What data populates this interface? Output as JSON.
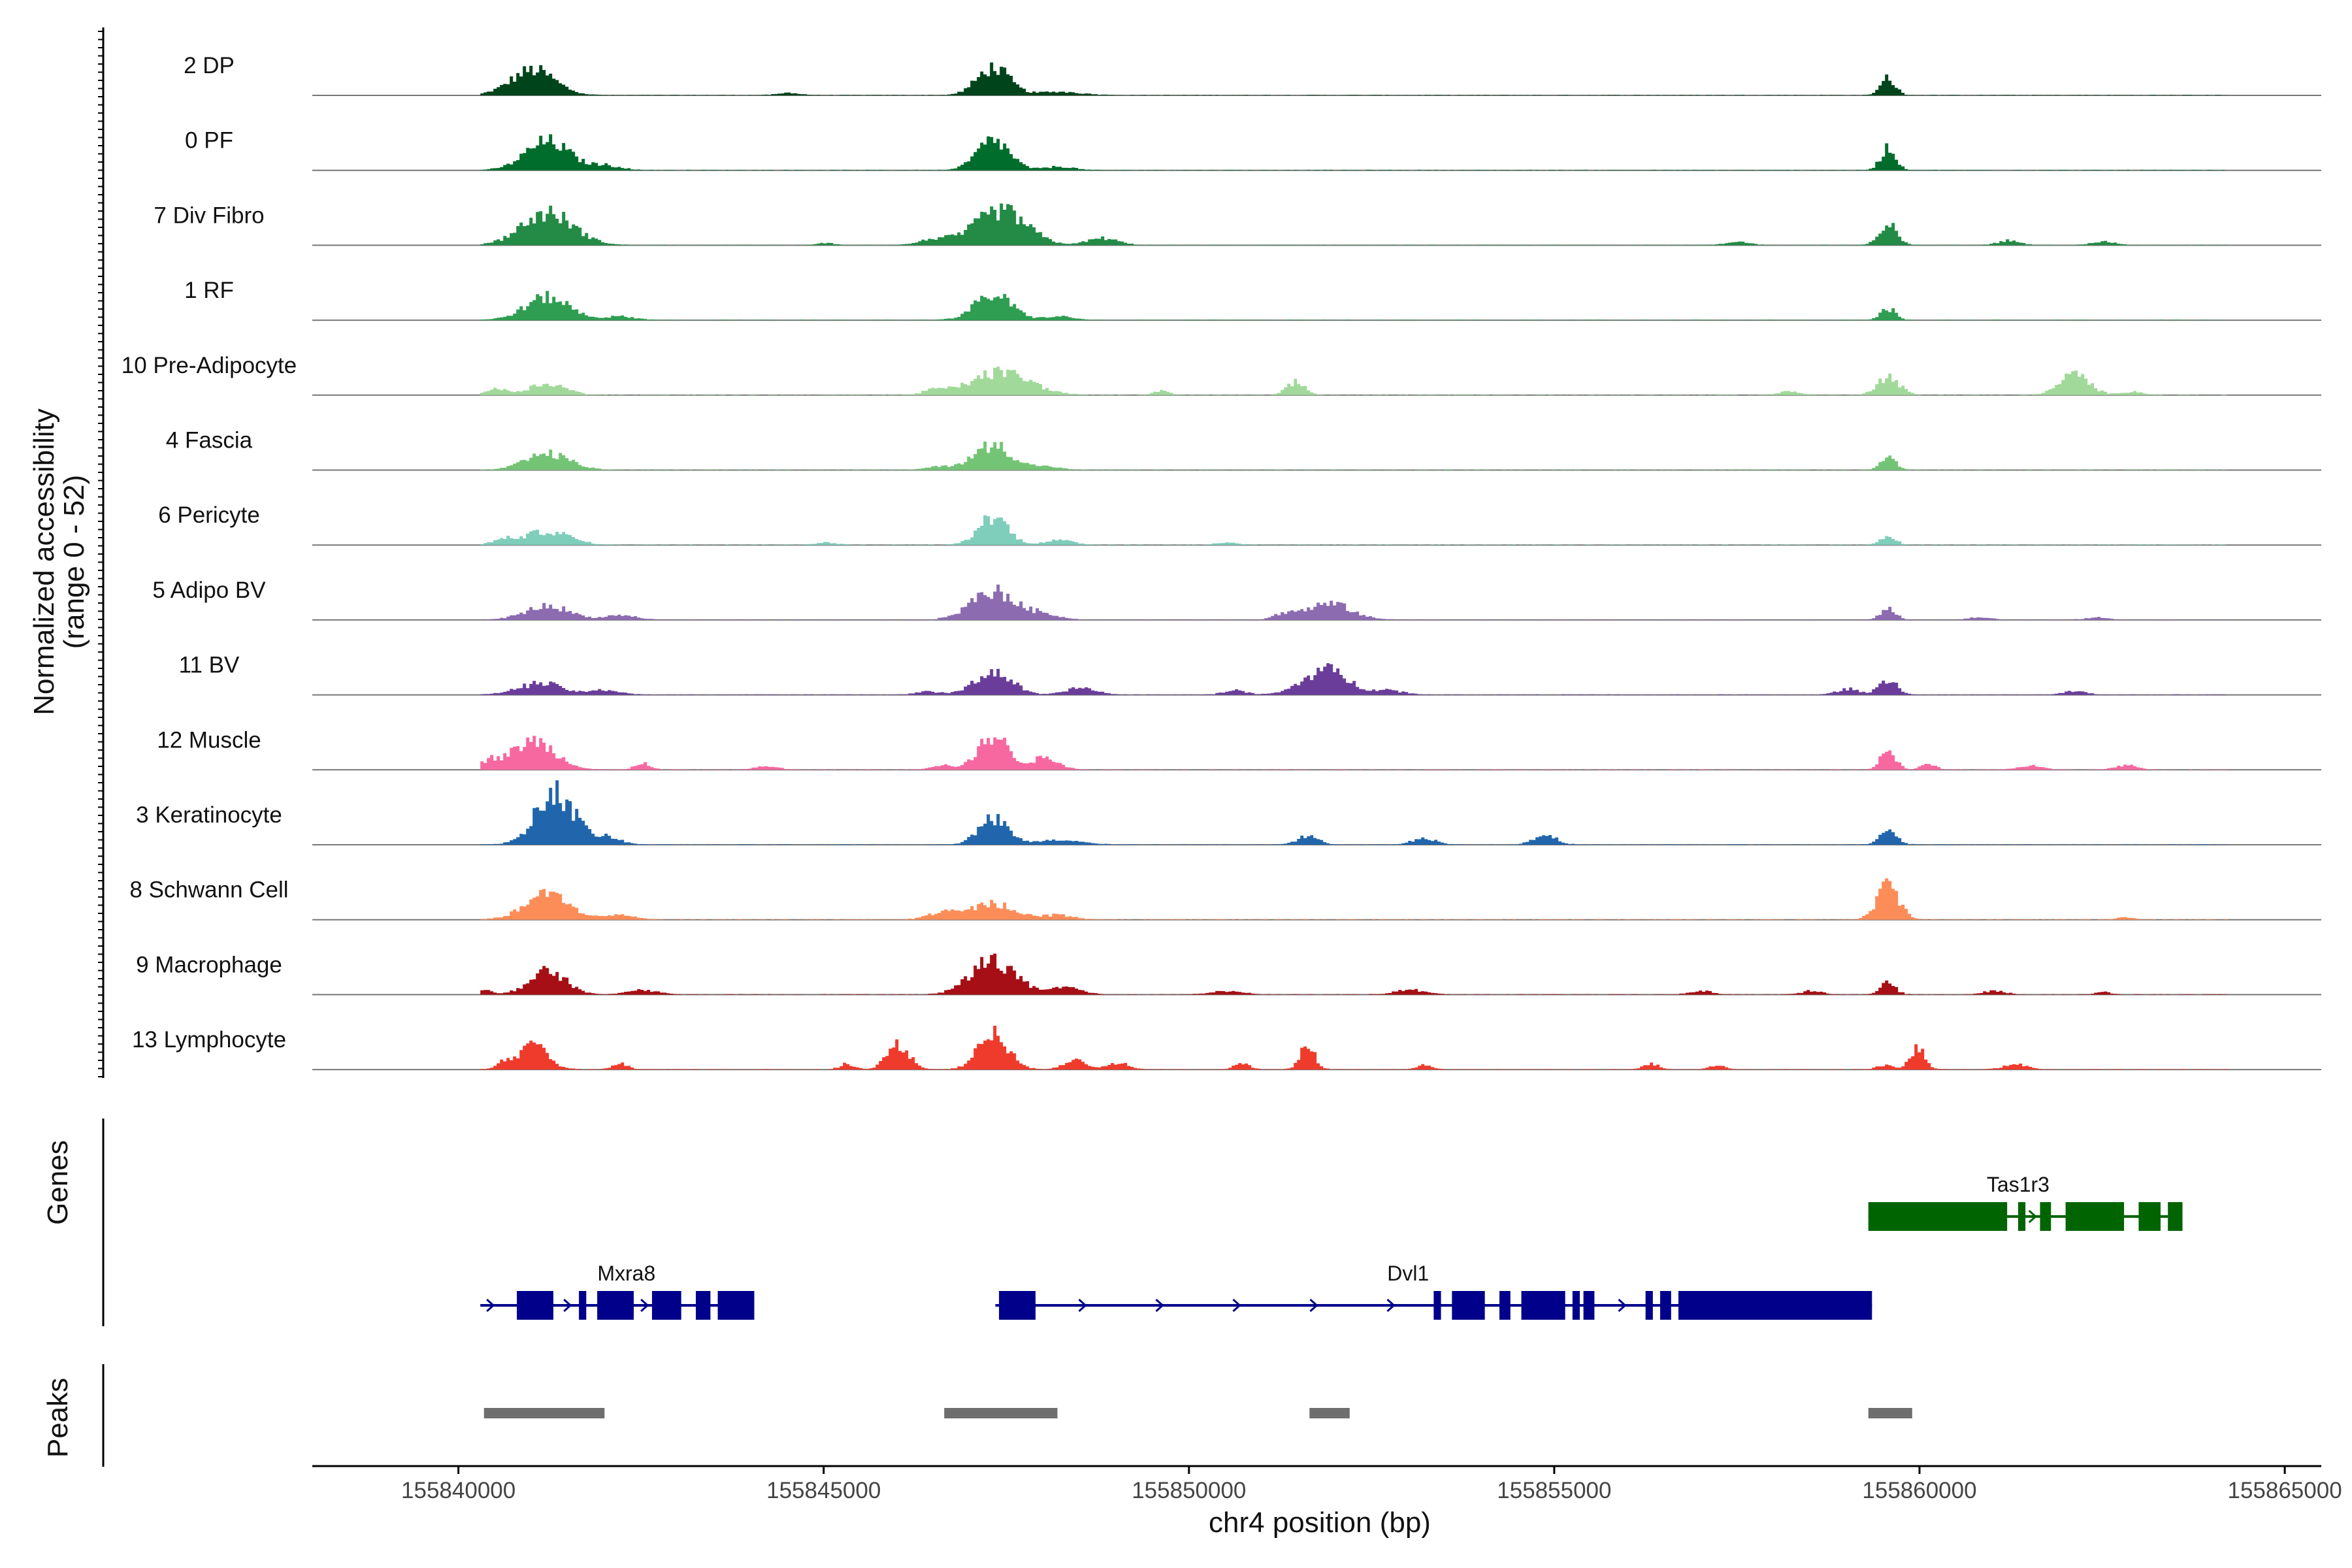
{
  "chart_data": {
    "type": "area",
    "title": "",
    "ylabel": "Normalized accessibility",
    "ylabel_range": "(range 0 - 52)",
    "yrange": [
      0,
      52
    ],
    "xlabel": "chr4 position (bp)",
    "xlim": [
      155838000,
      155865500
    ],
    "x_ticks": [
      155840000,
      155845000,
      155850000,
      155855000,
      155860000,
      155865000
    ],
    "x_tick_labels": [
      "155840000",
      "155845000",
      "155850000",
      "155855000",
      "155860000",
      "155865000"
    ],
    "tracks": [
      {
        "name": "2 DP",
        "color": "#00441b",
        "peaks": [
          [
            155841000,
            22,
            300
          ],
          [
            155847300,
            24,
            220
          ],
          [
            155859550,
            15,
            100
          ],
          [
            155848200,
            3,
            300
          ],
          [
            155844500,
            2,
            150
          ]
        ]
      },
      {
        "name": "0 PF",
        "color": "#006d2c",
        "peaks": [
          [
            155841200,
            25,
            300
          ],
          [
            155847300,
            26,
            220
          ],
          [
            155859550,
            20,
            100
          ],
          [
            155842000,
            4,
            200
          ],
          [
            155848200,
            3,
            200
          ]
        ]
      },
      {
        "name": "7 Div Fibro",
        "color": "#238b45",
        "peaks": [
          [
            155841200,
            28,
            350
          ],
          [
            155847400,
            30,
            350
          ],
          [
            155859550,
            18,
            120
          ],
          [
            155846500,
            5,
            200
          ],
          [
            155848800,
            6,
            200
          ],
          [
            155861200,
            4,
            150
          ],
          [
            155862500,
            3,
            150
          ],
          [
            155857500,
            3,
            150
          ],
          [
            155845000,
            2,
            100
          ]
        ]
      },
      {
        "name": "1 RF",
        "color": "#2f9e52",
        "peaks": [
          [
            155841200,
            20,
            300
          ],
          [
            155847300,
            22,
            250
          ],
          [
            155859550,
            10,
            100
          ],
          [
            155842200,
            3,
            200
          ],
          [
            155848200,
            3,
            200
          ]
        ]
      },
      {
        "name": "10 Pre-Adipocyte",
        "color": "#a1d99b",
        "peaks": [
          [
            155841200,
            10,
            250
          ],
          [
            155847400,
            20,
            400
          ],
          [
            155859550,
            16,
            150
          ],
          [
            155862100,
            18,
            200
          ],
          [
            155851450,
            12,
            120
          ],
          [
            155840500,
            5,
            150
          ],
          [
            155849600,
            4,
            100
          ],
          [
            155846500,
            4,
            150
          ],
          [
            155858200,
            3,
            150
          ],
          [
            155862900,
            3,
            150
          ]
        ]
      },
      {
        "name": "4 Fascia",
        "color": "#74c476",
        "peaks": [
          [
            155841200,
            14,
            300
          ],
          [
            155847300,
            22,
            250
          ],
          [
            155859550,
            12,
            100
          ],
          [
            155846600,
            3,
            200
          ],
          [
            155848000,
            3,
            200
          ]
        ]
      },
      {
        "name": "6 Pericyte",
        "color": "#7fcdbb",
        "peaks": [
          [
            155841200,
            12,
            300
          ],
          [
            155847300,
            25,
            200
          ],
          [
            155859550,
            8,
            100
          ],
          [
            155840600,
            4,
            150
          ],
          [
            155848200,
            4,
            200
          ],
          [
            155845000,
            2,
            150
          ],
          [
            155850500,
            2,
            150
          ]
        ]
      },
      {
        "name": "5 Adipo BV",
        "color": "#8c6bb1",
        "peaks": [
          [
            155841200,
            12,
            300
          ],
          [
            155847300,
            25,
            300
          ],
          [
            155851900,
            14,
            300
          ],
          [
            155859550,
            10,
            100
          ],
          [
            155842200,
            4,
            200
          ],
          [
            155848000,
            5,
            200
          ],
          [
            155851300,
            5,
            150
          ],
          [
            155860800,
            2,
            150
          ],
          [
            155862400,
            2,
            150
          ]
        ]
      },
      {
        "name": "11 BV",
        "color": "#6a3d9a",
        "peaks": [
          [
            155841100,
            10,
            300
          ],
          [
            155847300,
            20,
            250
          ],
          [
            155851850,
            22,
            300
          ],
          [
            155859550,
            14,
            120
          ],
          [
            155842000,
            4,
            200
          ],
          [
            155848500,
            6,
            200
          ],
          [
            155850600,
            4,
            150
          ],
          [
            155852700,
            4,
            200
          ],
          [
            155846400,
            3,
            150
          ],
          [
            155859000,
            5,
            150
          ],
          [
            155862100,
            3,
            150
          ]
        ]
      },
      {
        "name": "12 Muscle",
        "color": "#f768a1",
        "peaks": [
          [
            155841000,
            25,
            300
          ],
          [
            155847300,
            30,
            200
          ],
          [
            155859550,
            18,
            100
          ],
          [
            155842500,
            6,
            100
          ],
          [
            155848000,
            10,
            200
          ],
          [
            155846600,
            4,
            150
          ],
          [
            155844200,
            3,
            150
          ],
          [
            155840400,
            7,
            100
          ],
          [
            155860100,
            5,
            100
          ],
          [
            155861500,
            4,
            150
          ],
          [
            155862800,
            4,
            150
          ]
        ]
      },
      {
        "name": "3 Keratinocyte",
        "color": "#2166ac",
        "peaks": [
          [
            155841300,
            46,
            260
          ],
          [
            155847300,
            22,
            200
          ],
          [
            155854850,
            9,
            150
          ],
          [
            155859550,
            11,
            120
          ],
          [
            155851600,
            7,
            150
          ],
          [
            155853200,
            6,
            150
          ],
          [
            155842000,
            6,
            200
          ],
          [
            155848200,
            4,
            300
          ]
        ]
      },
      {
        "name": "8 Schwann Cell",
        "color": "#fc8d59",
        "peaks": [
          [
            155841200,
            22,
            300
          ],
          [
            155847300,
            14,
            300
          ],
          [
            155859550,
            30,
            150
          ],
          [
            155846600,
            6,
            200
          ],
          [
            155842200,
            4,
            200
          ],
          [
            155848200,
            4,
            200
          ],
          [
            155862800,
            2,
            100
          ]
        ]
      },
      {
        "name": "9 Macrophage",
        "color": "#a50f15",
        "peaks": [
          [
            155841200,
            20,
            250
          ],
          [
            155847300,
            30,
            300
          ],
          [
            155859550,
            10,
            100
          ],
          [
            155842500,
            4,
            200
          ],
          [
            155840300,
            5,
            100
          ],
          [
            155848300,
            6,
            200
          ],
          [
            155853000,
            4,
            200
          ],
          [
            155850500,
            3,
            200
          ],
          [
            155857000,
            3,
            150
          ],
          [
            155858500,
            3,
            150
          ],
          [
            155861000,
            3,
            150
          ],
          [
            155862500,
            2,
            100
          ]
        ]
      },
      {
        "name": "13 Lymphocyte",
        "color": "#ef3b2c",
        "peaks": [
          [
            155841000,
            20,
            200
          ],
          [
            155846000,
            22,
            150
          ],
          [
            155847300,
            32,
            200
          ],
          [
            155851600,
            22,
            100
          ],
          [
            155859950,
            18,
            100
          ],
          [
            155840600,
            6,
            100
          ],
          [
            155842200,
            5,
            100
          ],
          [
            155848400,
            8,
            150
          ],
          [
            155849000,
            6,
            150
          ],
          [
            155845300,
            5,
            100
          ],
          [
            155850700,
            5,
            100
          ],
          [
            155853200,
            4,
            100
          ],
          [
            155856300,
            5,
            100
          ],
          [
            155857200,
            4,
            100
          ],
          [
            155859500,
            4,
            100
          ],
          [
            155861300,
            5,
            150
          ]
        ]
      }
    ],
    "genes": [
      {
        "name": "Tas1r3",
        "color": "#006400",
        "strand": "+",
        "start": 155859300,
        "end": 155863400,
        "row": 0,
        "exons": [
          [
            155859300,
            155861200
          ],
          [
            155861350,
            155861450
          ],
          [
            155861650,
            155861800
          ],
          [
            155862000,
            155862800
          ],
          [
            155863000,
            155863300
          ],
          [
            155863400,
            155863600
          ]
        ]
      },
      {
        "name": "Mxra8",
        "color": "#00008b",
        "strand": "+",
        "start": 155840300,
        "end": 155844050,
        "row": 1,
        "exons": [
          [
            155840800,
            155841300
          ],
          [
            155841650,
            155841750
          ],
          [
            155841900,
            155842400
          ],
          [
            155842650,
            155843050
          ],
          [
            155843250,
            155843450
          ],
          [
            155843550,
            155844050
          ]
        ]
      },
      {
        "name": "Dvl1",
        "color": "#00008b",
        "strand": "+",
        "start": 155847350,
        "end": 155859350,
        "row": 1,
        "exons": [
          [
            155847400,
            155847900
          ],
          [
            155853350,
            155853450
          ],
          [
            155853600,
            155854050
          ],
          [
            155854250,
            155854400
          ],
          [
            155854550,
            155855150
          ],
          [
            155855250,
            155855350
          ],
          [
            155855400,
            155855550
          ],
          [
            155856250,
            155856350
          ],
          [
            155856450,
            155856600
          ],
          [
            155856700,
            155859350
          ]
        ]
      }
    ],
    "genes_panel_title": "Genes",
    "peaks_panel_title": "Peaks",
    "peak_regions": [
      [
        155840350,
        155842000
      ],
      [
        155846650,
        155848200
      ],
      [
        155851650,
        155852200
      ],
      [
        155859300,
        155859900
      ]
    ],
    "peak_color": "#6e6e6e"
  }
}
